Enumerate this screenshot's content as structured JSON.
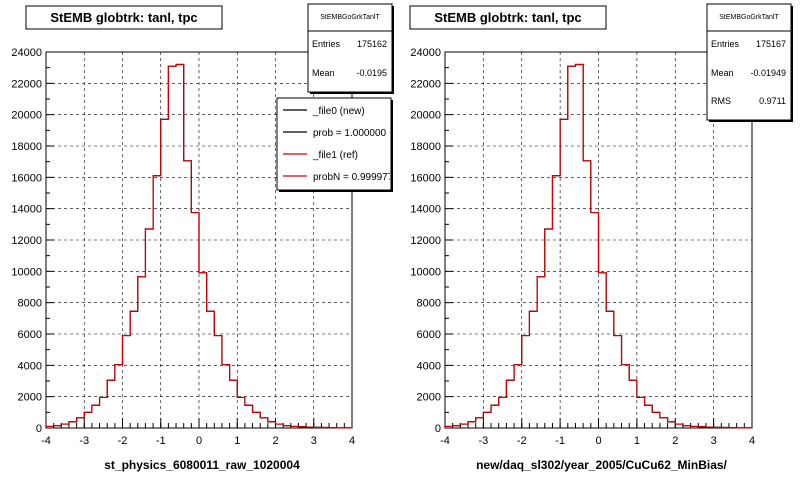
{
  "footer": "",
  "chart_data": [
    {
      "type": "histogram",
      "title": "StEMB globtrk: tanl, tpc",
      "xlabel": "st_physics_6080011_raw_1020004",
      "xlim": [
        -4,
        4
      ],
      "ylim": [
        0,
        24000
      ],
      "grid": true,
      "stats": {
        "name": "StEMBGoGrkTanlT",
        "rows": [
          {
            "label": "Entries",
            "value": "175162"
          },
          {
            "label": "Mean",
            "value": "-0.0195"
          }
        ]
      },
      "legend": {
        "placement": "top-right",
        "entries": [
          {
            "label": "_file0 (new)",
            "color": "#000000"
          },
          {
            "label": "prob = 1.000000",
            "color": "#000000"
          },
          {
            "label": "_file1 (ref)",
            "color": "#cc0000"
          },
          {
            "label": "probN = 0.999977",
            "color": "#cc0000"
          }
        ]
      },
      "bin_width": 0.2,
      "series": [
        {
          "color": "#cc0000",
          "x": [
            -4.0,
            -3.8,
            -3.6,
            -3.4,
            -3.2,
            -3.0,
            -2.8,
            -2.6,
            -2.4,
            -2.2,
            -2.0,
            -1.8,
            -1.6,
            -1.4,
            -1.2,
            -1.0,
            -0.8,
            -0.6,
            -0.4,
            -0.2,
            0.0,
            0.2,
            0.4,
            0.6,
            0.8,
            1.0,
            1.2,
            1.4,
            1.6,
            1.8,
            2.0,
            2.2,
            2.4,
            2.6,
            2.8,
            3.0,
            3.2,
            3.4,
            3.6,
            3.8
          ],
          "y": [
            100,
            150,
            250,
            400,
            650,
            1000,
            1450,
            1950,
            3050,
            4050,
            5900,
            7450,
            9650,
            12700,
            16100,
            19700,
            23100,
            23200,
            17050,
            13750,
            9900,
            7450,
            5900,
            4050,
            3050,
            1950,
            1450,
            1000,
            650,
            400,
            250,
            150,
            100,
            80,
            60,
            40,
            30,
            20,
            10,
            10
          ]
        }
      ]
    },
    {
      "type": "histogram",
      "title": "StEMB globtrk: tanl, tpc",
      "xlabel": "new/daq_sl302/year_2005/CuCu62_MinBias/",
      "xlim": [
        -4,
        4
      ],
      "ylim": [
        0,
        24000
      ],
      "grid": true,
      "stats": {
        "name": "StEMBGoGrkTanlT",
        "rows": [
          {
            "label": "Entries",
            "value": "175167"
          },
          {
            "label": "Mean",
            "value": "-0.01949"
          },
          {
            "label": "RMS",
            "value": "0.9711"
          }
        ]
      },
      "bin_width": 0.2,
      "series": [
        {
          "color": "#cc0000",
          "x": [
            -4.0,
            -3.8,
            -3.6,
            -3.4,
            -3.2,
            -3.0,
            -2.8,
            -2.6,
            -2.4,
            -2.2,
            -2.0,
            -1.8,
            -1.6,
            -1.4,
            -1.2,
            -1.0,
            -0.8,
            -0.6,
            -0.4,
            -0.2,
            0.0,
            0.2,
            0.4,
            0.6,
            0.8,
            1.0,
            1.2,
            1.4,
            1.6,
            1.8,
            2.0,
            2.2,
            2.4,
            2.6,
            2.8,
            3.0,
            3.2,
            3.4,
            3.6,
            3.8
          ],
          "y": [
            100,
            150,
            250,
            400,
            650,
            1000,
            1450,
            1950,
            3050,
            4050,
            5900,
            7450,
            9650,
            12700,
            16100,
            19700,
            23100,
            23200,
            17050,
            13750,
            9900,
            7450,
            5900,
            4050,
            3050,
            1950,
            1450,
            1000,
            650,
            400,
            250,
            150,
            100,
            80,
            60,
            40,
            30,
            20,
            10,
            10
          ]
        }
      ]
    }
  ]
}
